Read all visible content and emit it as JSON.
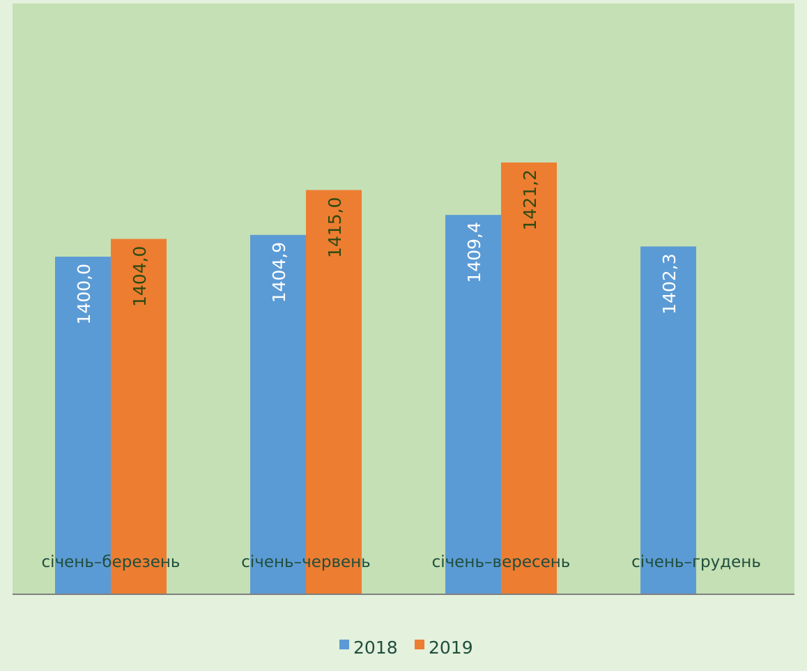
{
  "chart_data": {
    "type": "bar",
    "title": "",
    "xlabel": "",
    "ylabel": "",
    "categories": [
      "січень–березень",
      "січень–червень",
      "січень–вересень",
      "січень–грудень"
    ],
    "series": [
      {
        "name": "2018",
        "values": [
          1400.0,
          1404.9,
          1409.4,
          1402.3
        ],
        "labels": [
          "1400,0",
          "1404,9",
          "1409,4",
          "1402,3"
        ]
      },
      {
        "name": "2019",
        "values": [
          1404.0,
          1415.0,
          1421.2,
          null
        ],
        "labels": [
          "1404,0",
          "1415,0",
          "1421,2",
          ""
        ]
      }
    ],
    "ylim": [
      1324,
      1457
    ],
    "grid": false,
    "legend_position": "bottom",
    "colors": {
      "2018": "#5b9bd5",
      "2019": "#ed7d31",
      "label_2018": "#ffffff",
      "label_2019": "#2e4a12",
      "plot_background": "#c5e0b4",
      "page_background": "#e4f1dc",
      "axis": "#7f7f7f",
      "category_text": "#1f4e3d"
    }
  }
}
